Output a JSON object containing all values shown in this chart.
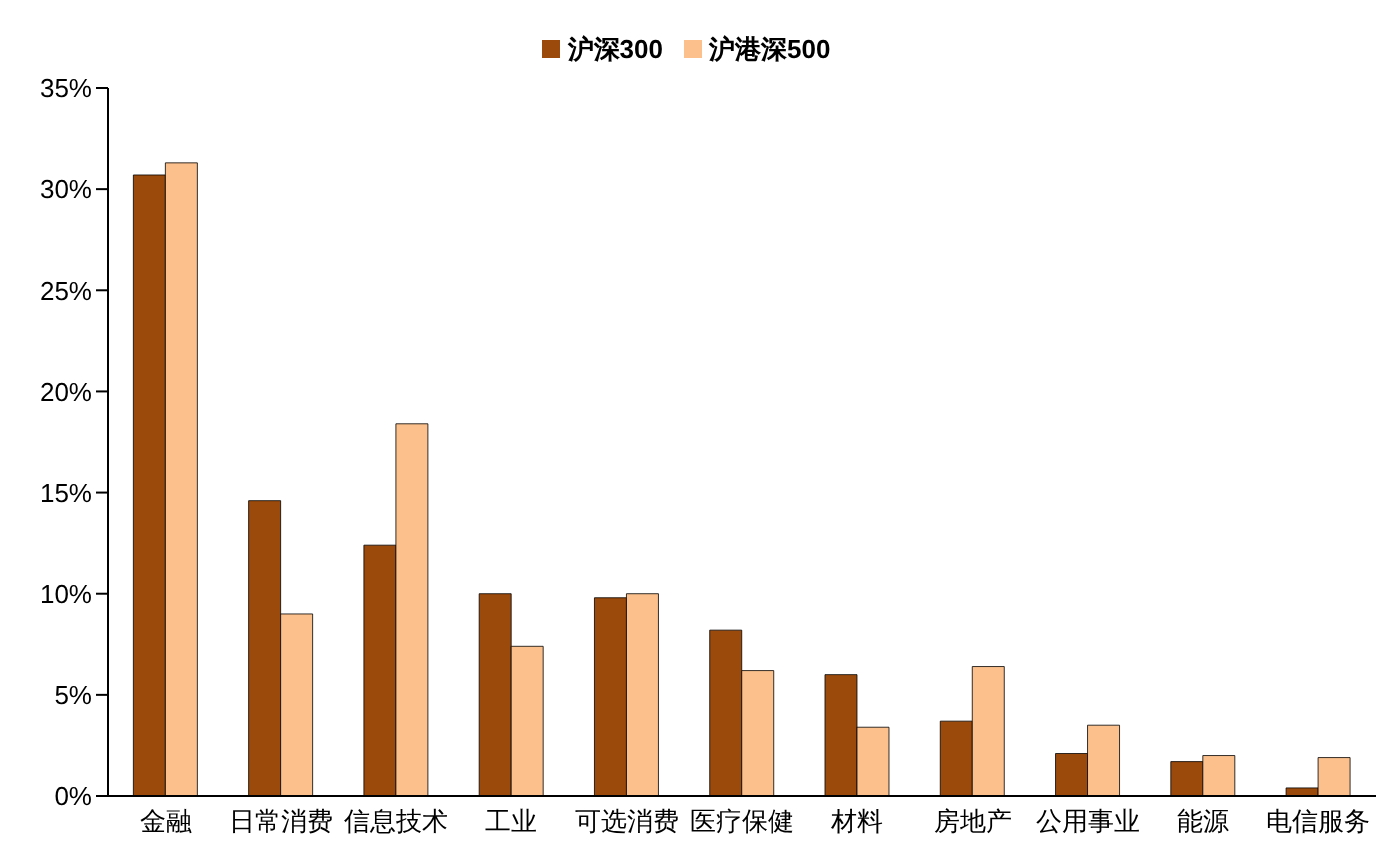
{
  "chart_data": {
    "type": "bar",
    "categories": [
      "金融",
      "日常消费",
      "信息技术",
      "工业",
      "可选消费",
      "医疗保健",
      "材料",
      "房地产",
      "公用事业",
      "能源",
      "电信服务"
    ],
    "series": [
      {
        "name": "沪深300",
        "color": "#9c4a0b",
        "values": [
          30.7,
          14.6,
          12.4,
          10.0,
          9.8,
          8.2,
          6.0,
          3.7,
          2.1,
          1.7,
          0.4
        ]
      },
      {
        "name": "沪港深500",
        "color": "#fbc08c",
        "values": [
          31.3,
          9.0,
          18.4,
          7.4,
          10.0,
          6.2,
          3.4,
          6.4,
          3.5,
          2.0,
          1.9
        ]
      }
    ],
    "ylim": [
      0,
      35
    ],
    "yticks": [
      {
        "value": 0,
        "label": "0%"
      },
      {
        "value": 5,
        "label": "5%"
      },
      {
        "value": 10,
        "label": "10%"
      },
      {
        "value": 15,
        "label": "15%"
      },
      {
        "value": 20,
        "label": "20%"
      },
      {
        "value": 25,
        "label": "25%"
      },
      {
        "value": 30,
        "label": "30%"
      },
      {
        "value": 35,
        "label": "35%"
      }
    ],
    "grid": false,
    "legend": "top"
  }
}
